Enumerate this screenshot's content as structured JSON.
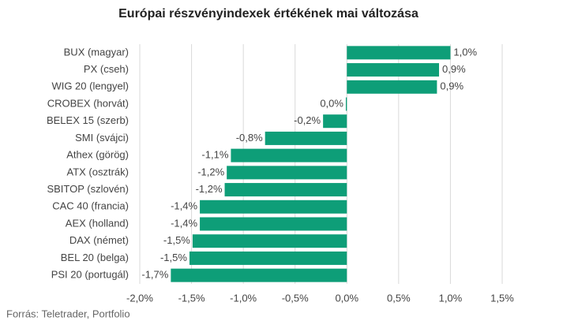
{
  "chart_data": {
    "type": "bar",
    "orientation": "horizontal",
    "title": "Európai részvényindexek értékének mai változása",
    "source": "Forrás: Teletrader, Portfolio",
    "categories": [
      "BUX (magyar)",
      "PX (cseh)",
      "WIG 20 (lengyel)",
      "CROBEX (horvát)",
      "BELEX 15 (szerb)",
      "SMI (svájci)",
      "Athex (görög)",
      "ATX (osztrák)",
      "SBITOP (szlovén)",
      "CAC 40 (francia)",
      "AEX (holland)",
      "DAX (német)",
      "BEL 20 (belga)",
      "PSI 20 (portugál)"
    ],
    "values": [
      1.0,
      0.89,
      0.87,
      -0.01,
      -0.23,
      -0.79,
      -1.12,
      -1.16,
      -1.18,
      -1.42,
      -1.42,
      -1.49,
      -1.52,
      -1.7
    ],
    "value_labels": [
      "1,0%",
      "0,9%",
      "0,9%",
      "0,0%",
      "-0,2%",
      "-0,8%",
      "-1,1%",
      "-1,2%",
      "-1,2%",
      "-1,4%",
      "-1,4%",
      "-1,5%",
      "-1,5%",
      "-1,7%"
    ],
    "color": "#0e9e78",
    "xlim": [
      -2.0,
      1.5
    ],
    "xticks": [
      {
        "value": -2.0,
        "label": "-2,0%"
      },
      {
        "value": -1.5,
        "label": "-1,5%"
      },
      {
        "value": -1.0,
        "label": "-1,0%"
      },
      {
        "value": -0.5,
        "label": "-0,5%"
      },
      {
        "value": 0,
        "label": "0,0%"
      },
      {
        "value": 0.5,
        "label": "0,5%"
      },
      {
        "value": 1.0,
        "label": "1,0%"
      },
      {
        "value": 1.5,
        "label": "1,5%"
      }
    ],
    "grid": true
  }
}
